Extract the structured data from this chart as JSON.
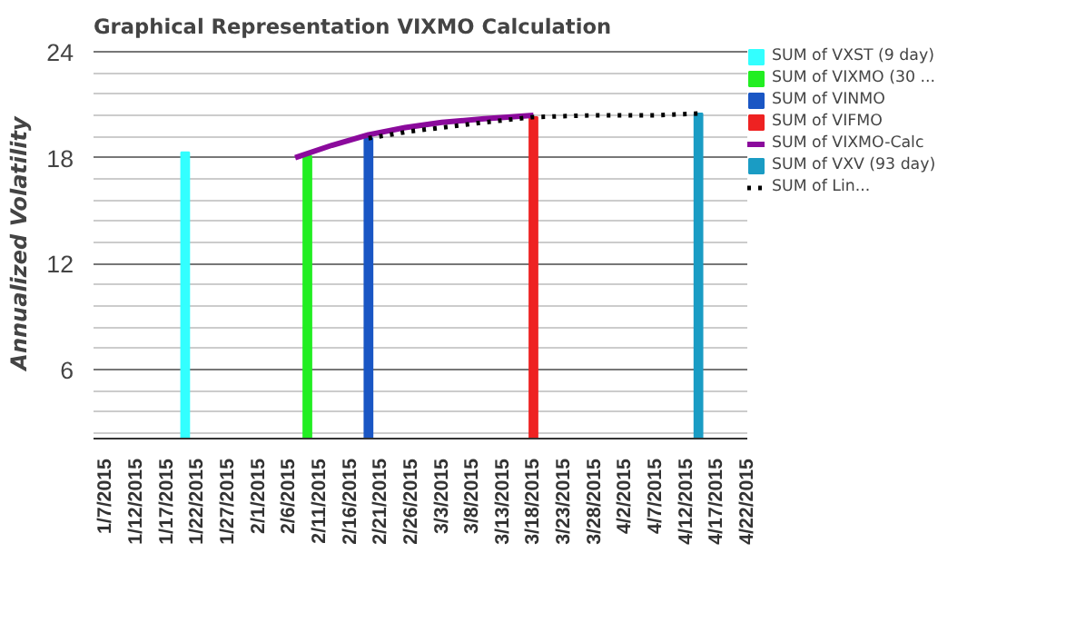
{
  "chart_data": {
    "type": "bar",
    "title": "Graphical Representation VIXMO Calculation",
    "ylabel": "Annualized Volatility",
    "xlim": [
      "2015-01-05",
      "2015-04-22"
    ],
    "xticks": [
      {
        "value": "2015-01-07",
        "label": "1/7/2015"
      },
      {
        "value": "2015-01-12",
        "label": "1/12/2015"
      },
      {
        "value": "2015-01-17",
        "label": "1/17/2015"
      },
      {
        "value": "2015-01-22",
        "label": "1/22/2015"
      },
      {
        "value": "2015-01-27",
        "label": "1/27/2015"
      },
      {
        "value": "2015-02-01",
        "label": "2/1/2015"
      },
      {
        "value": "2015-02-06",
        "label": "2/6/2015"
      },
      {
        "value": "2015-02-11",
        "label": "2/11/2015"
      },
      {
        "value": "2015-02-16",
        "label": "2/16/2015"
      },
      {
        "value": "2015-02-21",
        "label": "2/21/2015"
      },
      {
        "value": "2015-02-26",
        "label": "2/26/2015"
      },
      {
        "value": "2015-03-03",
        "label": "3/3/2015"
      },
      {
        "value": "2015-03-08",
        "label": "3/8/2015"
      },
      {
        "value": "2015-03-13",
        "label": "3/13/2015"
      },
      {
        "value": "2015-03-18",
        "label": "3/18/2015"
      },
      {
        "value": "2015-03-23",
        "label": "3/23/2015"
      },
      {
        "value": "2015-03-28",
        "label": "3/28/2015"
      },
      {
        "value": "2015-04-02",
        "label": "4/2/2015"
      },
      {
        "value": "2015-04-07",
        "label": "4/7/2015"
      },
      {
        "value": "2015-04-12",
        "label": "4/12/2015"
      },
      {
        "value": "2015-04-17",
        "label": "4/17/2015"
      },
      {
        "value": "2015-04-22",
        "label": "4/22/2015"
      }
    ],
    "ylim": [
      2.1,
      24.2
    ],
    "yticks": [
      6,
      12,
      18,
      24
    ],
    "grid": "y",
    "legend": "right",
    "series": [
      {
        "name": "SUM of VXST (9 day)",
        "color": "#33ffff",
        "x": [
          "2015-01-20"
        ],
        "values": [
          18.3
        ]
      },
      {
        "name": "SUM of VIXMO (30 ...",
        "color": "#22ee22",
        "x": [
          "2015-02-09"
        ],
        "values": [
          18.1
        ]
      },
      {
        "name": "SUM of VINMO",
        "color": "#1a56c4",
        "x": [
          "2015-02-19"
        ],
        "values": [
          19.1
        ]
      },
      {
        "name": "SUM of VIFMO",
        "color": "#ee2222",
        "x": [
          "2015-03-18"
        ],
        "values": [
          20.3
        ]
      },
      {
        "name": "SUM of VIXMO-Calc",
        "color": "#8b0a9c",
        "type": "line",
        "x": [
          "2015-02-07",
          "2015-02-13",
          "2015-02-19",
          "2015-02-25",
          "2015-03-03",
          "2015-03-10",
          "2015-03-18"
        ],
        "values": [
          18.0,
          18.7,
          19.3,
          19.7,
          20.0,
          20.2,
          20.4
        ]
      },
      {
        "name": "SUM of VXV (93 day)",
        "color": "#1a9cc4",
        "x": [
          "2015-04-14"
        ],
        "values": [
          20.5
        ]
      },
      {
        "name": "SUM of Lin...",
        "color": "#000000",
        "type": "line",
        "line_style": "dotted",
        "x": [
          "2015-02-19",
          "2015-02-26",
          "2015-03-03",
          "2015-03-10",
          "2015-03-18",
          "2015-03-28",
          "2015-04-07",
          "2015-04-14"
        ],
        "values": [
          19.1,
          19.5,
          19.7,
          20.0,
          20.3,
          20.4,
          20.4,
          20.5
        ]
      }
    ]
  }
}
